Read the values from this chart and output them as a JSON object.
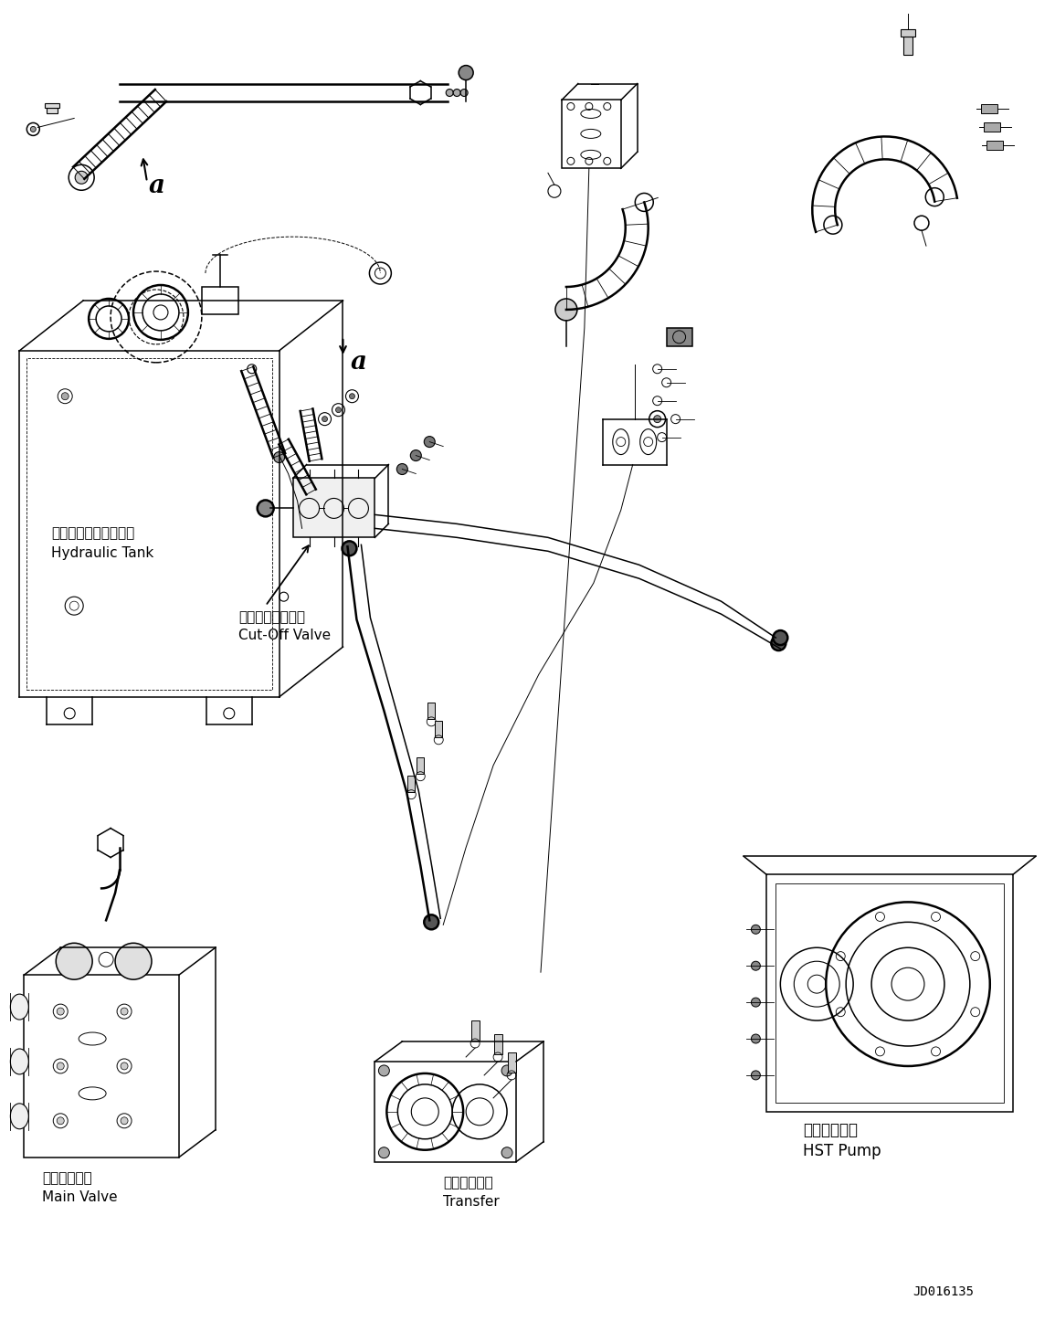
{
  "fig_width": 11.55,
  "fig_height": 14.58,
  "dpi": 100,
  "bg_color": "#ffffff",
  "line_color": "#000000",
  "labels": {
    "hydraulic_tank_jp": "ハイドロリックタンク",
    "hydraulic_tank_en": "Hydraulic Tank",
    "cutoff_valve_jp": "カットオフバルブ",
    "cutoff_valve_en": "Cut-Off Valve",
    "main_valve_jp": "メインバルブ",
    "main_valve_en": "Main Valve",
    "hst_pump_jp": "ＨＳＴポンプ",
    "hst_pump_en": "HST Pump",
    "transfer_jp": "トランスファ",
    "transfer_en": "Transfer",
    "ref_code": "JD016135",
    "label_a": "a"
  }
}
